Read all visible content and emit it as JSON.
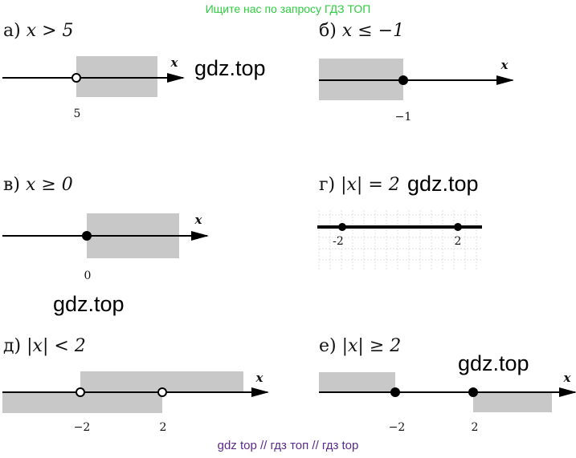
{
  "banner": "Ищите нас по запросу ГДЗ ТОП",
  "footer": "gdz top  //  гдз топ  //  гдз top",
  "watermark": "gdz.top",
  "colors": {
    "shade": "#c8c8c8",
    "line": "#000000",
    "banner": "#2ecc40",
    "footer": "#5a2a8a"
  },
  "problems": [
    {
      "letter": "а)",
      "expr": "x > 5",
      "points": [
        {
          "label": "5",
          "filled": false
        }
      ],
      "axis": "x"
    },
    {
      "letter": "б)",
      "expr": "x ≤ −1",
      "points": [
        {
          "label": "−1",
          "filled": true
        }
      ],
      "axis": "x"
    },
    {
      "letter": "в)",
      "expr": "x ≥ 0",
      "points": [
        {
          "label": "0",
          "filled": true
        }
      ],
      "axis": "x"
    },
    {
      "letter": "г)",
      "expr": "|x| = 2",
      "points": [
        {
          "label": "-2",
          "filled": true
        },
        {
          "label": "2",
          "filled": true
        }
      ]
    },
    {
      "letter": "д)",
      "expr": "|x| < 2",
      "points": [
        {
          "label": "−2",
          "filled": false
        },
        {
          "label": "2",
          "filled": false
        }
      ],
      "axis": "x"
    },
    {
      "letter": "е)",
      "expr": "|x| ≥ 2",
      "points": [
        {
          "label": "−2",
          "filled": true
        },
        {
          "label": "2",
          "filled": true
        }
      ],
      "axis": "x"
    }
  ]
}
